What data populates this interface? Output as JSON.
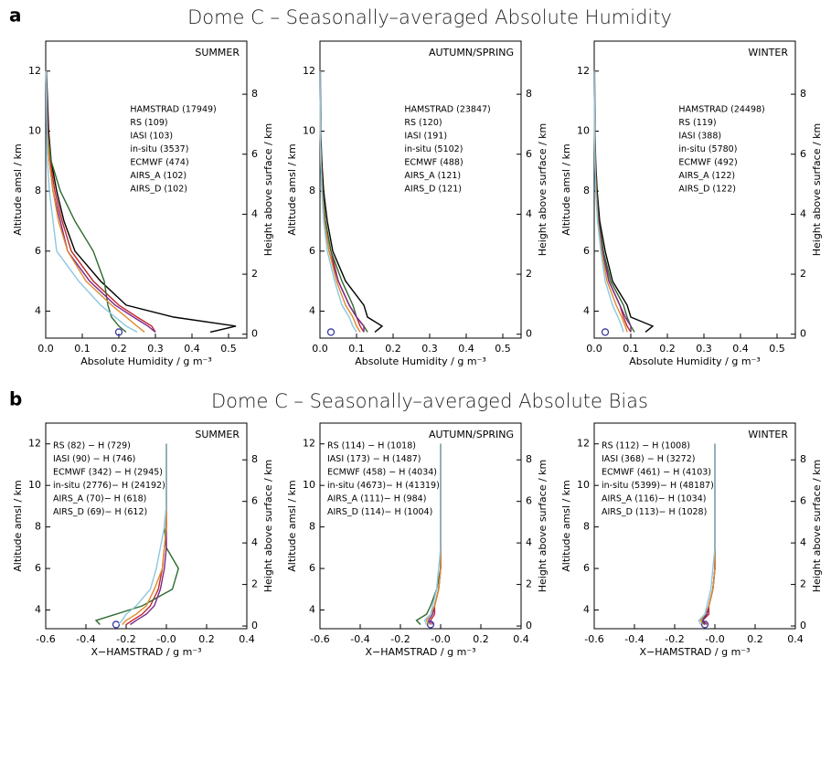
{
  "panels": [
    {
      "label": "a",
      "title": "Dome C – Seasonally–averaged Absolute Humidity"
    },
    {
      "label": "b",
      "title": "Dome C – Seasonally–averaged Absolute Bias"
    }
  ],
  "chart_data": [
    {
      "type": "line",
      "title": "SUMMER",
      "xlabel": "Absolute Humidity / g m⁻³",
      "ylabel": "Altitude amsl / km",
      "y2label": "Height above surface / km",
      "xlim": [
        0,
        0.55
      ],
      "xticks": [
        {
          "value": 0,
          "label": "0.0"
        },
        0.1,
        0.2,
        0.3,
        0.4,
        0.5
      ],
      "ylim": [
        3.1,
        13
      ],
      "yticks": [
        4,
        6,
        8,
        10,
        12
      ],
      "y2lim": [
        -0.13,
        9.77
      ],
      "y2ticks": [
        0,
        2,
        4,
        6,
        8
      ],
      "legend": "upper right",
      "y": [
        3.3,
        3.5,
        3.8,
        4.2,
        5,
        6,
        7,
        8,
        9,
        10,
        12
      ],
      "series": [
        {
          "name": "HAMSTRAD (17949)",
          "color": "#000000",
          "values": [
            0.45,
            0.52,
            0.35,
            0.22,
            0.15,
            0.08,
            0.05,
            0.03,
            0.015,
            0.008,
            0.002
          ]
        },
        {
          "name": "RS (109)",
          "color": "#c0282d",
          "values": [
            0.3,
            0.29,
            0.25,
            0.2,
            0.13,
            0.07,
            0.045,
            0.025,
            0.012,
            0.006,
            0.001
          ]
        },
        {
          "name": "IASI (103)",
          "color": "#2e6b2e",
          "values": [
            0.22,
            0.2,
            0.18,
            0.17,
            0.16,
            0.13,
            0.08,
            0.04,
            0.015,
            0.005,
            0.001
          ]
        },
        {
          "name": "in-situ (3537)",
          "color": "#3a3aa0",
          "marker": "o",
          "values": [
            0.2,
            null,
            null,
            null,
            null,
            null,
            null,
            null,
            null,
            null,
            null
          ]
        },
        {
          "name": "ECMWF (474)",
          "color": "#7b2a8c",
          "values": [
            0.3,
            0.28,
            0.24,
            0.19,
            0.12,
            0.06,
            0.04,
            0.02,
            0.01,
            0.005,
            0.001
          ]
        },
        {
          "name": "AIRS_A (102)",
          "color": "#e08a2a",
          "values": [
            0.27,
            0.25,
            0.22,
            0.18,
            0.11,
            0.06,
            0.035,
            0.02,
            0.01,
            0.004,
            0.001
          ]
        },
        {
          "name": "AIRS_D (102)",
          "color": "#8cc8e0",
          "values": [
            0.25,
            0.22,
            0.19,
            0.15,
            0.09,
            0.03,
            0.02,
            0.01,
            0.005,
            0.003,
            0.001
          ]
        }
      ]
    },
    {
      "type": "line",
      "title": "AUTUMN/SPRING",
      "xlabel": "Absolute Humidity / g m⁻³",
      "ylabel": "Altitude amsl / km",
      "y2label": "Height above surface / km",
      "xlim": [
        0,
        0.55
      ],
      "xticks": [
        {
          "value": 0,
          "label": "0.0"
        },
        0.1,
        0.2,
        0.3,
        0.4,
        0.5
      ],
      "ylim": [
        3.1,
        13
      ],
      "yticks": [
        4,
        6,
        8,
        10,
        12
      ],
      "y2lim": [
        -0.13,
        9.77
      ],
      "y2ticks": [
        0,
        2,
        4,
        6,
        8
      ],
      "legend": "upper right",
      "y": [
        3.3,
        3.5,
        3.8,
        4.2,
        5,
        6,
        7,
        8,
        9,
        10,
        12
      ],
      "series": [
        {
          "name": "HAMSTRAD (23847)",
          "color": "#000000",
          "values": [
            0.15,
            0.17,
            0.13,
            0.12,
            0.07,
            0.035,
            0.02,
            0.01,
            0.005,
            0.002,
            0.001
          ]
        },
        {
          "name": "RS (120)",
          "color": "#c0282d",
          "values": [
            0.12,
            0.11,
            0.1,
            0.08,
            0.05,
            0.03,
            0.015,
            0.007,
            0.003,
            0.001,
            0
          ]
        },
        {
          "name": "IASI (191)",
          "color": "#2e6b2e",
          "values": [
            0.13,
            0.12,
            0.1,
            0.09,
            0.06,
            0.03,
            0.015,
            0.007,
            0.003,
            0.001,
            0
          ]
        },
        {
          "name": "in-situ (5102)",
          "color": "#3a3aa0",
          "marker": "o",
          "values": [
            0.03,
            null,
            null,
            null,
            null,
            null,
            null,
            null,
            null,
            null,
            null
          ]
        },
        {
          "name": "ECMWF (488)",
          "color": "#7b2a8c",
          "values": [
            0.12,
            0.12,
            0.1,
            0.08,
            0.05,
            0.025,
            0.012,
            0.006,
            0.003,
            0.001,
            0
          ]
        },
        {
          "name": "AIRS_A (121)",
          "color": "#e08a2a",
          "values": [
            0.11,
            0.1,
            0.09,
            0.07,
            0.045,
            0.025,
            0.012,
            0.006,
            0.003,
            0.001,
            0
          ]
        },
        {
          "name": "AIRS_D (121)",
          "color": "#8cc8e0",
          "values": [
            0.1,
            0.09,
            0.08,
            0.06,
            0.04,
            0.02,
            0.01,
            0.005,
            0.002,
            0.001,
            0
          ]
        }
      ]
    },
    {
      "type": "line",
      "title": "WINTER",
      "xlabel": "Absolute Humidity / g m⁻³",
      "ylabel": "Altitude amsl / km",
      "y2label": "Height above surface / km",
      "xlim": [
        0,
        0.55
      ],
      "xticks": [
        {
          "value": 0,
          "label": "0.0"
        },
        0.1,
        0.2,
        0.3,
        0.4,
        0.5
      ],
      "ylim": [
        3.1,
        13
      ],
      "yticks": [
        4,
        6,
        8,
        10,
        12
      ],
      "y2lim": [
        -0.13,
        9.77
      ],
      "y2ticks": [
        0,
        2,
        4,
        6,
        8
      ],
      "legend": "upper right",
      "y": [
        3.3,
        3.5,
        3.8,
        4.2,
        5,
        6,
        7,
        8,
        9,
        10,
        12
      ],
      "series": [
        {
          "name": "HAMSTRAD (24498)",
          "color": "#000000",
          "values": [
            0.14,
            0.16,
            0.1,
            0.09,
            0.05,
            0.03,
            0.015,
            0.008,
            0.004,
            0.002,
            0.001
          ]
        },
        {
          "name": "RS (119)",
          "color": "#c0282d",
          "values": [
            0.1,
            0.09,
            0.08,
            0.07,
            0.04,
            0.025,
            0.012,
            0.006,
            0.003,
            0.001,
            0
          ]
        },
        {
          "name": "IASI (388)",
          "color": "#2e6b2e",
          "values": [
            0.11,
            0.1,
            0.09,
            0.08,
            0.045,
            0.025,
            0.012,
            0.006,
            0.003,
            0.001,
            0
          ]
        },
        {
          "name": "in-situ (5780)",
          "color": "#3a3aa0",
          "marker": "o",
          "values": [
            0.03,
            null,
            null,
            null,
            null,
            null,
            null,
            null,
            null,
            null,
            null
          ]
        },
        {
          "name": "ECMWF (492)",
          "color": "#7b2a8c",
          "values": [
            0.1,
            0.1,
            0.085,
            0.07,
            0.04,
            0.022,
            0.011,
            0.005,
            0.002,
            0.001,
            0
          ]
        },
        {
          "name": "AIRS_A (122)",
          "color": "#e08a2a",
          "values": [
            0.09,
            0.085,
            0.075,
            0.06,
            0.035,
            0.02,
            0.01,
            0.005,
            0.002,
            0.001,
            0
          ]
        },
        {
          "name": "AIRS_D (122)",
          "color": "#8cc8e0",
          "values": [
            0.08,
            0.075,
            0.065,
            0.05,
            0.03,
            0.018,
            0.009,
            0.004,
            0.002,
            0.001,
            0
          ]
        }
      ]
    },
    {
      "type": "line",
      "title": "SUMMER",
      "xlabel": "X−HAMSTRAD / g m⁻³",
      "ylabel": "Altitude amsl / km",
      "y2label": "Height above surface / km",
      "xlim": [
        -0.6,
        0.4
      ],
      "xticks": [
        -0.6,
        -0.4,
        -0.2,
        {
          "value": 0,
          "label": "-0.0"
        },
        0.2,
        0.4
      ],
      "ylim": [
        3.1,
        13
      ],
      "yticks": [
        4,
        6,
        8,
        10,
        12
      ],
      "y2lim": [
        -0.13,
        9.77
      ],
      "y2ticks": [
        0,
        2,
        4,
        6,
        8
      ],
      "legend": "upper left",
      "y": [
        3.3,
        3.5,
        3.8,
        4.2,
        5,
        6,
        7,
        8,
        9,
        10,
        12
      ],
      "series": [
        {
          "name": "RS (82) − H (729)",
          "color": "#c0282d",
          "values": [
            -0.2,
            -0.17,
            -0.12,
            -0.08,
            -0.04,
            -0.02,
            -0.01,
            0,
            0,
            0,
            0
          ]
        },
        {
          "name": "IASI (90) − H (746)",
          "color": "#2e6b2e",
          "values": [
            -0.33,
            -0.35,
            -0.25,
            -0.12,
            0.03,
            0.06,
            0,
            -0.01,
            0,
            0,
            0
          ]
        },
        {
          "name": "ECMWF (342) − H (2945)",
          "color": "#7b2a8c",
          "values": [
            -0.18,
            -0.15,
            -0.1,
            -0.06,
            -0.03,
            -0.01,
            0,
            0,
            0,
            0,
            0
          ]
        },
        {
          "name": "in-situ (2776)− H (24192)",
          "color": "#3a3aa0",
          "marker": "o",
          "values": [
            -0.25,
            null,
            null,
            null,
            null,
            null,
            null,
            null,
            null,
            null,
            null
          ]
        },
        {
          "name": "AIRS_A (70)− H (618)",
          "color": "#e08a2a",
          "values": [
            -0.22,
            -0.2,
            -0.15,
            -0.1,
            -0.06,
            -0.02,
            -0.01,
            0,
            0,
            0,
            0
          ]
        },
        {
          "name": "AIRS_D (69)− H (612)",
          "color": "#8cc8e0",
          "values": [
            -0.24,
            -0.22,
            -0.2,
            -0.15,
            -0.08,
            -0.05,
            -0.03,
            -0.01,
            0,
            0,
            0
          ]
        }
      ]
    },
    {
      "type": "line",
      "title": "AUTUMN/SPRING",
      "xlabel": "X−HAMSTRAD / g m⁻³",
      "ylabel": "Altitude amsl / km",
      "y2label": "Height above surface / km",
      "xlim": [
        -0.6,
        0.4
      ],
      "xticks": [
        -0.6,
        -0.4,
        -0.2,
        {
          "value": 0,
          "label": "-0.0"
        },
        0.2,
        0.4
      ],
      "ylim": [
        3.1,
        13
      ],
      "yticks": [
        4,
        6,
        8,
        10,
        12
      ],
      "y2lim": [
        -0.13,
        9.77
      ],
      "y2ticks": [
        0,
        2,
        4,
        6,
        8
      ],
      "legend": "upper left",
      "y": [
        3.3,
        3.5,
        3.8,
        4.2,
        5,
        6,
        7,
        8,
        9,
        10,
        12
      ],
      "series": [
        {
          "name": "RS (114) − H (1018)",
          "color": "#c0282d",
          "values": [
            -0.04,
            -0.05,
            -0.03,
            -0.03,
            -0.01,
            0,
            0,
            0,
            0,
            0,
            0
          ]
        },
        {
          "name": "IASI (173) − H (1487)",
          "color": "#2e6b2e",
          "values": [
            -0.1,
            -0.12,
            -0.07,
            -0.05,
            -0.02,
            0,
            0,
            0,
            0,
            0,
            0
          ]
        },
        {
          "name": "ECMWF (458) − H (4034)",
          "color": "#7b2a8c",
          "values": [
            -0.05,
            -0.06,
            -0.04,
            -0.03,
            -0.01,
            0,
            0,
            0,
            0,
            0,
            0
          ]
        },
        {
          "name": "in-situ (4673)− H (41319)",
          "color": "#3a3aa0",
          "marker": "o",
          "values": [
            -0.05,
            null,
            null,
            null,
            null,
            null,
            null,
            null,
            null,
            null,
            null
          ]
        },
        {
          "name": "AIRS_A (111)− H (984)",
          "color": "#e08a2a",
          "values": [
            -0.06,
            -0.07,
            -0.05,
            -0.03,
            -0.01,
            0,
            0,
            0,
            0,
            0,
            0
          ]
        },
        {
          "name": "AIRS_D (114)− H (1004)",
          "color": "#8cc8e0",
          "values": [
            -0.07,
            -0.08,
            -0.05,
            -0.04,
            -0.02,
            -0.01,
            0,
            0,
            0,
            0,
            0
          ]
        }
      ]
    },
    {
      "type": "line",
      "title": "WINTER",
      "xlabel": "X−HAMSTRAD / g m⁻³",
      "ylabel": "Altitude amsl / km",
      "y2label": "Height above surface / km",
      "xlim": [
        -0.6,
        0.4
      ],
      "xticks": [
        -0.6,
        -0.4,
        -0.2,
        {
          "value": 0,
          "label": "-0.0"
        },
        0.2,
        0.4
      ],
      "ylim": [
        3.1,
        13
      ],
      "yticks": [
        4,
        6,
        8,
        10,
        12
      ],
      "y2lim": [
        -0.13,
        9.77
      ],
      "y2ticks": [
        0,
        2,
        4,
        6,
        8
      ],
      "legend": "upper left",
      "y": [
        3.3,
        3.5,
        3.8,
        4.2,
        5,
        6,
        7,
        8,
        9,
        10,
        12
      ],
      "series": [
        {
          "name": "RS (112) − H (1008)",
          "color": "#c0282d",
          "values": [
            -0.04,
            -0.06,
            -0.03,
            -0.03,
            -0.01,
            0,
            0,
            0,
            0,
            0,
            0
          ]
        },
        {
          "name": "IASI (368) − H (3272)",
          "color": "#2e6b2e",
          "values": [
            -0.05,
            -0.07,
            -0.04,
            -0.03,
            -0.01,
            0,
            0,
            0,
            0,
            0,
            0
          ]
        },
        {
          "name": "ECMWF (461) − H (4103)",
          "color": "#7b2a8c",
          "values": [
            -0.05,
            -0.06,
            -0.04,
            -0.03,
            -0.01,
            0,
            0,
            0,
            0,
            0,
            0
          ]
        },
        {
          "name": "in-situ (5399)− H (48187)",
          "color": "#3a3aa0",
          "marker": "o",
          "values": [
            -0.05,
            null,
            null,
            null,
            null,
            null,
            null,
            null,
            null,
            null,
            null
          ]
        },
        {
          "name": "AIRS_A (116)− H (1034)",
          "color": "#e08a2a",
          "values": [
            -0.06,
            -0.07,
            -0.05,
            -0.03,
            -0.01,
            0,
            0,
            0,
            0,
            0,
            0
          ]
        },
        {
          "name": "AIRS_D (113)− H (1028)",
          "color": "#8cc8e0",
          "values": [
            -0.07,
            -0.08,
            -0.05,
            -0.04,
            -0.02,
            -0.01,
            0,
            0,
            0,
            0,
            0
          ]
        }
      ]
    }
  ]
}
